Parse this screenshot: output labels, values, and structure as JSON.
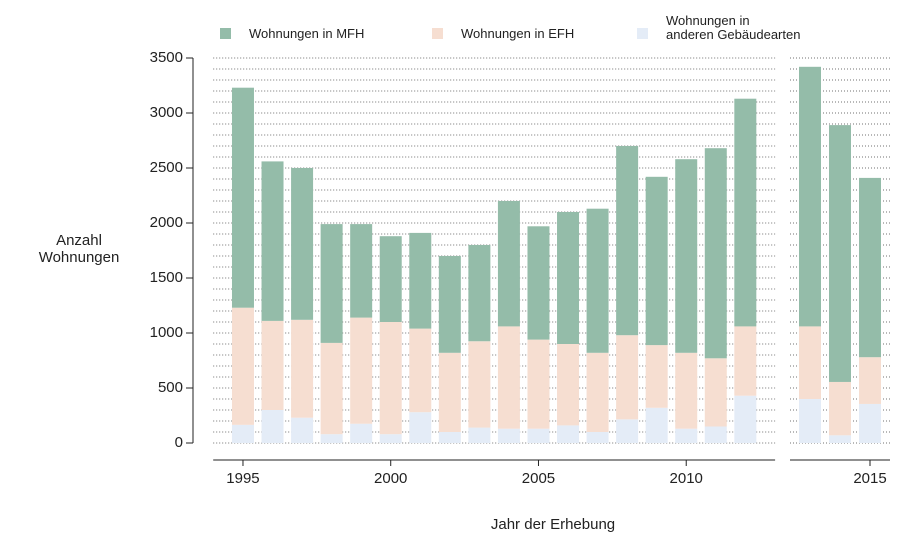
{
  "chart_data": [
    {
      "type": "bar",
      "stacked": true,
      "categories": [
        "1995",
        null,
        null,
        null,
        null,
        "2000",
        null,
        null,
        null,
        null,
        "2005",
        null,
        null,
        null,
        null,
        "2010",
        null,
        null
      ],
      "series": [
        {
          "name": "Wohnungen in MFH",
          "color": "#94bca9",
          "values": [
            2000,
            1450,
            1380,
            1080,
            850,
            780,
            870,
            880,
            875,
            1140,
            1030,
            1200,
            1310,
            1720,
            1530,
            1760,
            1910,
            2070
          ]
        },
        {
          "name": "Wohnungen in EFH",
          "color": "#f6ded1",
          "values": [
            1065,
            810,
            890,
            830,
            965,
            1020,
            760,
            720,
            785,
            930,
            810,
            740,
            720,
            765,
            570,
            690,
            620,
            630
          ]
        },
        {
          "name": "Wohnungen in\nanderen Gebäudearten",
          "color": "#e4ecf7",
          "values": [
            165,
            300,
            230,
            80,
            175,
            80,
            280,
            100,
            140,
            130,
            130,
            160,
            100,
            215,
            320,
            130,
            150,
            430
          ]
        }
      ],
      "ylim": [
        0,
        3500
      ],
      "yticks": [
        0,
        500,
        1000,
        1500,
        2000,
        2500,
        3000,
        3500
      ],
      "yminor": [
        100,
        200,
        300,
        400,
        600,
        700,
        800,
        900,
        1100,
        1200,
        1300,
        1400,
        1600,
        1700,
        1800,
        1900,
        2100,
        2200,
        2300,
        2400,
        2600,
        2700,
        2800,
        2900,
        3100,
        3200,
        3300,
        3400
      ],
      "y_label": "Anzahl\nWohnungen",
      "x_label": "Jahr der Erhebung",
      "legend": "top",
      "grid": true
    },
    {
      "type": "bar",
      "stacked": true,
      "categories": [
        null,
        null,
        "2015"
      ],
      "series": [
        {
          "color": "#94bca9",
          "values": [
            2360,
            2335,
            1630
          ]
        },
        {
          "color": "#f6ded1",
          "values": [
            660,
            485,
            425
          ]
        },
        {
          "color": "#e4ecf7",
          "values": [
            400,
            70,
            355
          ]
        }
      ],
      "ylim": [
        0,
        3500
      ],
      "yticks": [
        0,
        500,
        1000,
        1500,
        2000,
        2500,
        3000,
        3500
      ],
      "yminor": [
        100,
        200,
        300,
        400,
        600,
        700,
        800,
        900,
        1100,
        1200,
        1300,
        1400,
        1600,
        1700,
        1800,
        1900,
        2100,
        2200,
        2300,
        2400,
        2600,
        2700,
        2800,
        2900,
        3100,
        3200,
        3300,
        3400
      ],
      "grid": true
    }
  ]
}
